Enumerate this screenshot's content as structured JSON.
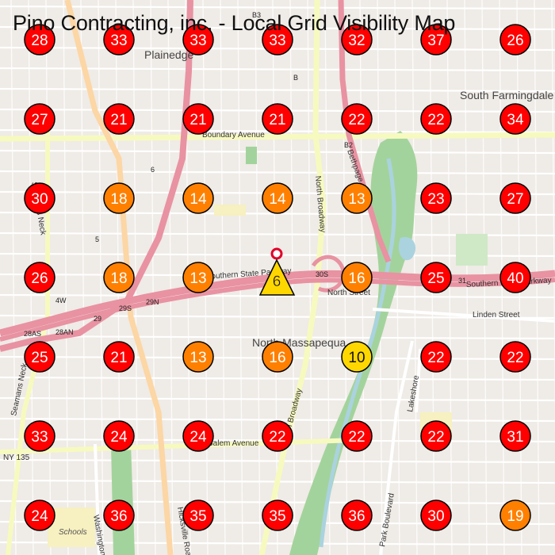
{
  "title": "Pino Contracting, inc. - Local Grid Visibility Map",
  "colors": {
    "land": "#efebe6",
    "block": "#e0dbd4",
    "street": "#ffffff",
    "parkway": "#e892a2",
    "arterial": "#f7fabf",
    "secondary": "#fcd6a4",
    "park": "#a3d39c",
    "parkDark": "#5d9a59",
    "water": "#aad3df",
    "red": "#ff0000",
    "orange": "#ff8000",
    "yellow": "#ffd700",
    "markerRing": "#e0002a"
  },
  "places": [
    {
      "id": "plainedge",
      "label": "Plainedge"
    },
    {
      "id": "south-farmingdale",
      "label": "South Farmingdale"
    },
    {
      "id": "north-massapequa",
      "label": "North Massapequa"
    }
  ],
  "streets": [
    {
      "id": "boundary-ave",
      "label": "Boundary Avenue"
    },
    {
      "id": "southern-state-pkwy",
      "label": "Southern State Parkway"
    },
    {
      "id": "north-broadway",
      "label": "North Broadway"
    },
    {
      "id": "linden-st",
      "label": "Linden Street"
    },
    {
      "id": "salem-ave",
      "label": "Salem Avenue"
    },
    {
      "id": "park-blvd",
      "label": "Park Boulevard"
    },
    {
      "id": "lakeshore",
      "label": "Lakeshore"
    },
    {
      "id": "seamans-neck",
      "label": "Seamans Neck"
    },
    {
      "id": "hicksville-rd",
      "label": "Hicksville Road"
    },
    {
      "id": "bethpage",
      "label": "Bethpage"
    },
    {
      "id": "washington",
      "label": "Washington"
    },
    {
      "id": "north-st",
      "label": "North Street"
    },
    {
      "id": "ny-135",
      "label": "NY 135"
    }
  ],
  "shields": [
    "B3",
    "B",
    "B2",
    "4W",
    "28AS",
    "28AN",
    "29S",
    "29N",
    "29",
    "30S",
    "31",
    "5",
    "6"
  ],
  "poi": [
    "Schools"
  ],
  "site_marker": {
    "label": "6",
    "shape": "triangle",
    "color": "yellow"
  },
  "grid": [
    [
      28,
      33,
      33,
      33,
      32,
      37,
      26
    ],
    [
      27,
      21,
      21,
      21,
      22,
      22,
      34
    ],
    [
      30,
      18,
      14,
      14,
      13,
      23,
      27
    ],
    [
      26,
      18,
      13,
      null,
      16,
      25,
      40
    ],
    [
      25,
      21,
      13,
      16,
      10,
      22,
      22
    ],
    [
      33,
      24,
      24,
      22,
      22,
      22,
      31
    ],
    [
      24,
      36,
      35,
      35,
      36,
      30,
      19
    ]
  ]
}
